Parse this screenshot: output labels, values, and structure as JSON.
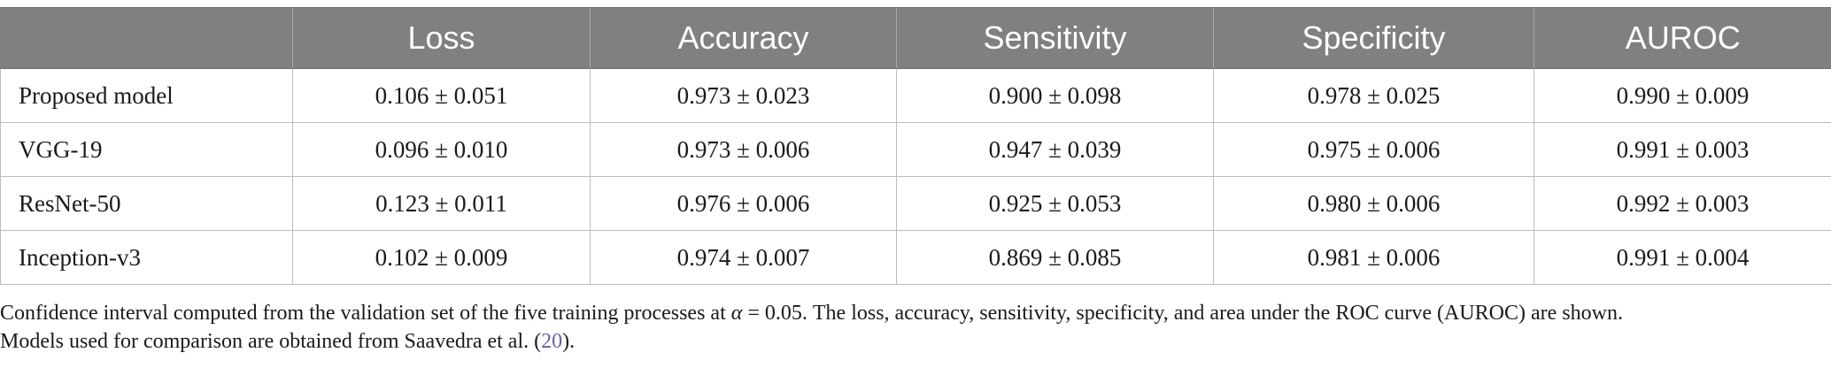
{
  "table": {
    "headers": [
      "",
      "Loss",
      "Accuracy",
      "Sensitivity",
      "Specificity",
      "AUROC"
    ],
    "rows": [
      [
        "Proposed model",
        "0.106 ± 0.051",
        "0.973 ± 0.023",
        "0.900 ± 0.098",
        "0.978 ± 0.025",
        "0.990 ± 0.009"
      ],
      [
        "VGG-19",
        "0.096 ± 0.010",
        "0.973 ± 0.006",
        "0.947 ± 0.039",
        "0.975 ± 0.006",
        "0.991 ± 0.003"
      ],
      [
        "ResNet-50",
        "0.123 ± 0.011",
        "0.976 ± 0.006",
        "0.925 ± 0.053",
        "0.980 ± 0.006",
        "0.992 ± 0.003"
      ],
      [
        "Inception-v3",
        "0.102 ± 0.009",
        "0.974 ± 0.007",
        "0.869 ± 0.085",
        "0.981 ± 0.006",
        "0.991 ± 0.004"
      ]
    ]
  },
  "footnote": {
    "line1_before_alpha": "Confidence interval computed from the validation set of the five training processes at ",
    "alpha_symbol": "α",
    "line1_after_alpha": " = 0.05. The loss, accuracy, sensitivity, specificity, and area under the ROC curve (AUROC) are shown.",
    "line2_before_ref": "Models used for comparison are obtained from Saavedra et al. (",
    "ref_number": "20",
    "line2_after_ref": ")."
  },
  "colors": {
    "header_background": "#808080",
    "header_text": "#ffffff",
    "reference_link": "#6b5fa0"
  }
}
